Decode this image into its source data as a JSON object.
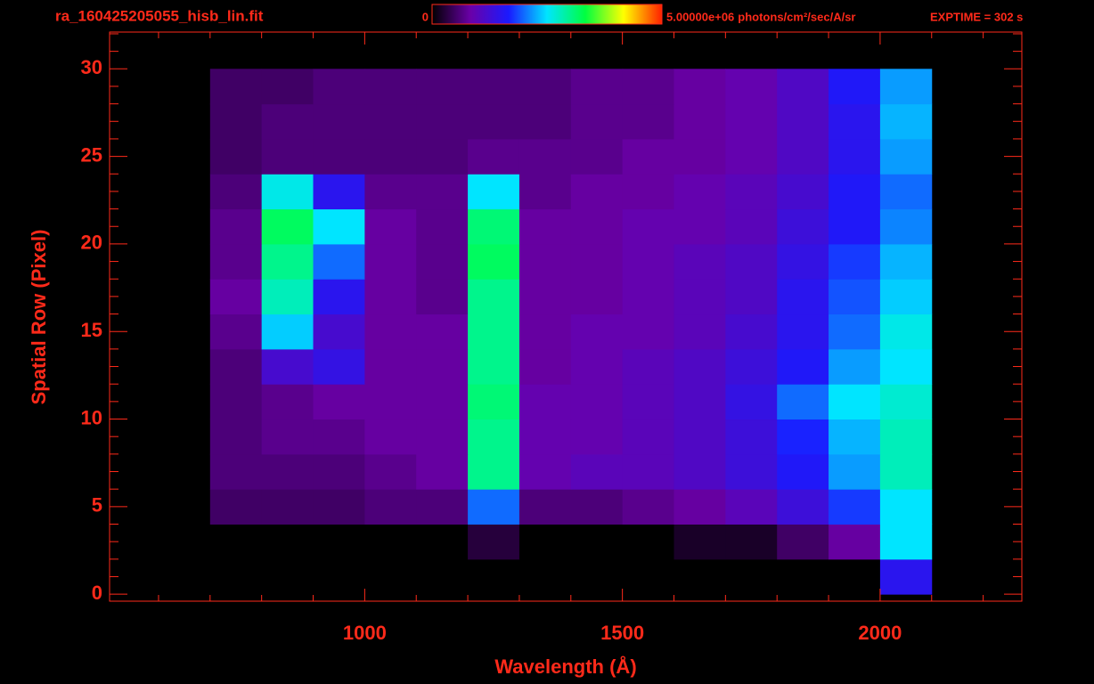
{
  "chart_data": {
    "type": "heatmap",
    "title": "ra_160425205055_hisb_lin.fit",
    "annotation": "EXPTIME = 302 s",
    "x_label": "Wavelength (Å)",
    "y_label": "Spatial Row (Pixel)",
    "colorbar_label": "photons/cm²/sec/A/sr",
    "clim": [
      0,
      5000000
    ],
    "cticks": [
      0,
      {
        "value": 5000000,
        "label": "5.00000e+06"
      }
    ],
    "colormap": [
      "#000000",
      "#6a00a8",
      "#1a1aff",
      "#00e5ff",
      "#00ff40",
      "#ffff00",
      "#ff2000"
    ],
    "xlim": [
      505,
      2275
    ],
    "xticks": [
      1000,
      1500,
      2000
    ],
    "xminorticks": [
      600,
      700,
      800,
      900,
      1100,
      1200,
      1300,
      1400,
      1600,
      1700,
      1800,
      1900,
      2100,
      2200
    ],
    "ylim": [
      -0.4,
      32.1
    ],
    "yticks": [
      0,
      5,
      10,
      15,
      20,
      25,
      30
    ],
    "yminorticks": [
      1,
      2,
      3,
      4,
      6,
      7,
      8,
      9,
      11,
      12,
      13,
      14,
      16,
      17,
      18,
      19,
      21,
      22,
      23,
      24,
      26,
      27,
      28,
      29,
      31,
      32
    ],
    "xbins": [
      700,
      800,
      900,
      1000,
      1100,
      1200,
      1300,
      1400,
      1500,
      1600,
      1700,
      1800,
      1900,
      2000,
      2100
    ],
    "ybins": [
      0,
      2,
      4,
      6,
      8,
      10,
      12,
      14,
      16,
      18,
      20,
      22,
      24,
      26,
      28,
      30
    ],
    "values": [
      [
        0,
        0,
        0,
        0,
        0,
        0,
        0,
        0,
        0,
        0,
        0,
        0,
        0,
        1500000.0
      ],
      [
        0,
        0,
        0,
        0,
        0,
        300000.0,
        0,
        0,
        0,
        200000.0,
        200000.0,
        500000.0,
        800000.0,
        2500000.0
      ],
      [
        500000.0,
        500000.0,
        500000.0,
        600000.0,
        600000.0,
        2000000.0,
        600000.0,
        600000.0,
        700000.0,
        800000.0,
        1000000.0,
        1300000.0,
        1800000.0,
        2500000.0
      ],
      [
        600000.0,
        600000.0,
        600000.0,
        700000.0,
        800000.0,
        3000000.0,
        900000.0,
        1000000.0,
        1000000.0,
        1100000.0,
        1300000.0,
        1600000.0,
        2200000.0,
        2800000.0
      ],
      [
        600000.0,
        700000.0,
        700000.0,
        800000.0,
        800000.0,
        3000000.0,
        900000.0,
        900000.0,
        1000000.0,
        1100000.0,
        1300000.0,
        1700000.0,
        2300000.0,
        2800000.0
      ],
      [
        600000.0,
        700000.0,
        800000.0,
        800000.0,
        800000.0,
        3100000.0,
        900000.0,
        900000.0,
        1000000.0,
        1100000.0,
        1400000.0,
        2000000.0,
        2500000.0,
        2700000.0
      ],
      [
        600000.0,
        1200000.0,
        1400000.0,
        800000.0,
        800000.0,
        3000000.0,
        800000.0,
        900000.0,
        1000000.0,
        1100000.0,
        1300000.0,
        1600000.0,
        2200000.0,
        2500000.0
      ],
      [
        700000.0,
        2400000.0,
        1200000.0,
        800000.0,
        800000.0,
        3000000.0,
        800000.0,
        900000.0,
        900000.0,
        1000000.0,
        1200000.0,
        1500000.0,
        2000000.0,
        2600000.0
      ],
      [
        800000.0,
        2800000.0,
        1500000.0,
        800000.0,
        700000.0,
        3000000.0,
        800000.0,
        800000.0,
        900000.0,
        1000000.0,
        1100000.0,
        1500000.0,
        1900000.0,
        2400000.0
      ],
      [
        700000.0,
        3000000.0,
        2000000.0,
        800000.0,
        700000.0,
        3200000.0,
        800000.0,
        800000.0,
        900000.0,
        1000000.0,
        1100000.0,
        1400000.0,
        1800000.0,
        2300000.0
      ],
      [
        700000.0,
        3200000.0,
        2500000.0,
        800000.0,
        700000.0,
        3100000.0,
        800000.0,
        800000.0,
        900000.0,
        900000.0,
        1000000.0,
        1300000.0,
        1600000.0,
        2100000.0
      ],
      [
        600000.0,
        2600000.0,
        1500000.0,
        700000.0,
        700000.0,
        2500000.0,
        700000.0,
        800000.0,
        800000.0,
        900000.0,
        1000000.0,
        1200000.0,
        1600000.0,
        2000000.0
      ],
      [
        500000.0,
        600000.0,
        600000.0,
        600000.0,
        600000.0,
        700000.0,
        700000.0,
        700000.0,
        800000.0,
        800000.0,
        900000.0,
        1100000.0,
        1500000.0,
        2200000.0
      ],
      [
        500000.0,
        600000.0,
        600000.0,
        600000.0,
        600000.0,
        600000.0,
        600000.0,
        700000.0,
        700000.0,
        800000.0,
        900000.0,
        1100000.0,
        1500000.0,
        2300000.0
      ],
      [
        500000.0,
        500000.0,
        600000.0,
        600000.0,
        600000.0,
        600000.0,
        600000.0,
        700000.0,
        700000.0,
        800000.0,
        900000.0,
        1100000.0,
        1600000.0,
        2200000.0
      ]
    ]
  }
}
